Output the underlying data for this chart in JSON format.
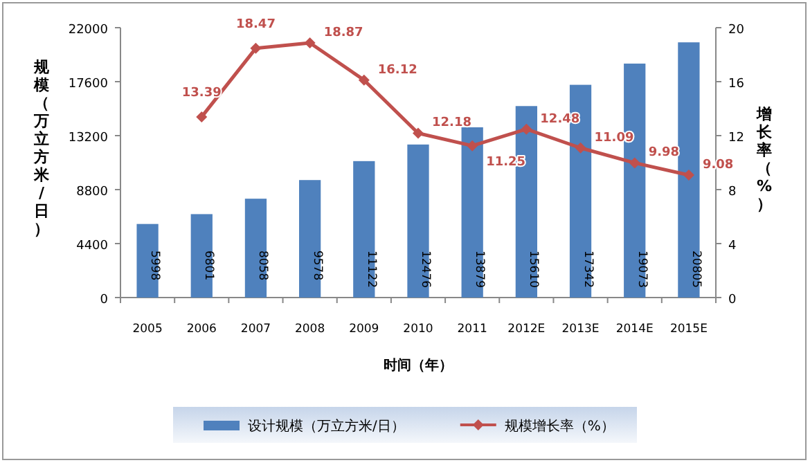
{
  "chart_data": {
    "type": "bar",
    "xlabel": "时间（年）",
    "ylabel": "规模（万立方米/日）",
    "y2label": "增长率（%）",
    "categories": [
      "2005",
      "2006",
      "2007",
      "2008",
      "2009",
      "2010",
      "2011",
      "2012E",
      "2013E",
      "2014E",
      "2015E"
    ],
    "series": [
      {
        "name": "设计规模（万立方米/日）",
        "color": "#4f81bd",
        "values": [
          5998,
          6801,
          8058,
          9578,
          11122,
          12476,
          13879,
          15610,
          17342,
          19073,
          20805
        ]
      },
      {
        "name": "规模增长率（%）",
        "type": "line",
        "axis": "y2",
        "color": "#c0504d",
        "marker": "diamond",
        "values": [
          null,
          13.39,
          18.47,
          18.87,
          16.12,
          12.18,
          11.25,
          12.48,
          11.09,
          9.98,
          9.08
        ]
      }
    ],
    "ylim": [
      0,
      22000
    ],
    "yticks": [
      0,
      4400,
      8800,
      13200,
      17600,
      22000
    ],
    "y2lim": [
      0,
      20
    ],
    "y2ticks": [
      0,
      4,
      8,
      12,
      16,
      20
    ],
    "data_labels": true,
    "grid": false,
    "legend": "bottom"
  }
}
